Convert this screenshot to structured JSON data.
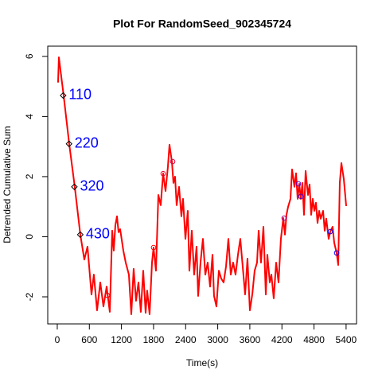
{
  "chart_data": {
    "type": "line",
    "title": "Plot For RandomSeed_902345724",
    "x_label": "Time(s)",
    "y_label": "Detrended Cumulative Sum",
    "xlim": [
      -178,
      5595
    ],
    "ylim": [
      -2.9,
      6.34
    ],
    "xticks": [
      0,
      600,
      1200,
      1800,
      2400,
      3000,
      3600,
      4200,
      4800,
      5400
    ],
    "yticks": [
      -2,
      0,
      2,
      4,
      6
    ],
    "x": [
      15,
      30,
      119,
      223,
      327,
      431,
      506,
      565,
      640,
      684,
      744,
      804,
      863,
      923,
      982,
      1027,
      1056,
      1086,
      1116,
      1146,
      1176,
      1235,
      1280,
      1339,
      1384,
      1428,
      1473,
      1518,
      1562,
      1607,
      1652,
      1681,
      1726,
      1771,
      1800,
      1845,
      1890,
      1934,
      1979,
      2024,
      2068,
      2098,
      2143,
      2172,
      2202,
      2232,
      2277,
      2321,
      2351,
      2396,
      2440,
      2470,
      2515,
      2559,
      2604,
      2634,
      2678,
      2723,
      2768,
      2812,
      2857,
      2902,
      2931,
      2976,
      3021,
      3065,
      3110,
      3155,
      3199,
      3244,
      3288,
      3333,
      3378,
      3422,
      3467,
      3512,
      3556,
      3601,
      3646,
      3690,
      3735,
      3765,
      3809,
      3854,
      3899,
      3928,
      3973,
      4003,
      4047,
      4092,
      4137,
      4181,
      4226,
      4256,
      4285,
      4315,
      4360,
      4390,
      4434,
      4464,
      4494,
      4524,
      4553,
      4583,
      4613,
      4643,
      4687,
      4717,
      4747,
      4776,
      4806,
      4836,
      4866,
      4896,
      4925,
      4970,
      5000,
      5029,
      5074,
      5104,
      5148,
      5178,
      5223,
      5253,
      5282,
      5312,
      5357,
      5402
    ],
    "series": [
      {
        "color": "#ff0000",
        "values": [
          5.13,
          5.97,
          4.7,
          3.09,
          1.66,
          0.07,
          -0.76,
          -0.33,
          -1.92,
          -1.26,
          -2.45,
          -1.52,
          -2.32,
          -1.66,
          -2.5,
          0.2,
          -0.46,
          0.38,
          0.68,
          0.15,
          0.25,
          -0.46,
          -0.86,
          -1.26,
          -2.58,
          -1.07,
          -2.13,
          -1.52,
          -2.5,
          -1.13,
          -2.53,
          -1.79,
          -2.58,
          -0.86,
          -0.36,
          -1.13,
          1.39,
          1.05,
          2.11,
          1.52,
          2.32,
          3.06,
          2.5,
          1.79,
          2.0,
          1.05,
          1.66,
          0.68,
          1.26,
          -0.07,
          0.86,
          -1.13,
          0.2,
          -1.26,
          -0.33,
          -1.97,
          -0.86,
          -0.07,
          -1.26,
          -0.86,
          -1.66,
          -0.6,
          -1.97,
          -2.32,
          -1.13,
          -1.39,
          -1.52,
          -0.99,
          -0.07,
          -1.26,
          -0.86,
          -1.26,
          -0.6,
          -0.07,
          -0.99,
          -1.92,
          -0.73,
          -2.45,
          -1.92,
          -1.13,
          -0.86,
          0.2,
          -0.86,
          0.33,
          -1.92,
          -0.6,
          -1.52,
          -1.26,
          -2.05,
          -0.86,
          -1.52,
          -0.07,
          0.62,
          0.07,
          0.73,
          0.99,
          1.26,
          2.24,
          1.66,
          2.11,
          1.26,
          1.76,
          1.26,
          1.79,
          0.73,
          2.19,
          1.39,
          1.74,
          0.73,
          1.26,
          0.86,
          1.13,
          0.46,
          0.86,
          0.6,
          0.86,
          0.2,
          0.6,
          -0.07,
          0.17,
          0.33,
          -0.2,
          -0.54,
          -0.94,
          1.79,
          2.45,
          1.92,
          1.02
        ]
      }
    ],
    "markers": {
      "x": [
        937,
        1800,
        1979,
        2158,
        4241,
        4509,
        4554,
        5104,
        5223
      ],
      "values": [
        -1.95,
        -0.36,
        2.1,
        2.5,
        0.62,
        1.76,
        1.34,
        0.17,
        -0.54
      ],
      "colors": [
        "#ff0000",
        "#ff0000",
        "#e8002a",
        "#d80040",
        "#a00080",
        "#6000c0",
        "#4000e0",
        "#0000ff",
        "#0000ff"
      ]
    },
    "annotations": [
      {
        "x": 110,
        "y": 4.7,
        "label": "110"
      },
      {
        "x": 220,
        "y": 3.09,
        "label": "220"
      },
      {
        "x": 320,
        "y": 1.66,
        "label": "320"
      },
      {
        "x": 430,
        "y": 0.07,
        "label": "430"
      }
    ]
  }
}
